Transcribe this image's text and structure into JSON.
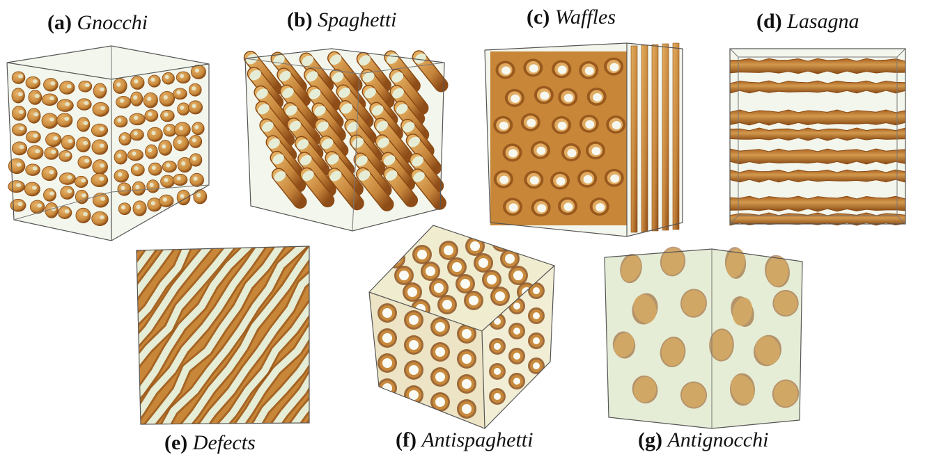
{
  "figure": {
    "panels": [
      {
        "tag": "(a)",
        "name": "Gnocchi"
      },
      {
        "tag": "(b)",
        "name": "Spaghetti"
      },
      {
        "tag": "(c)",
        "name": "Waffles"
      },
      {
        "tag": "(d)",
        "name": "Lasagna"
      },
      {
        "tag": "(e)",
        "name": "Defects"
      },
      {
        "tag": "(f)",
        "name": "Antispaghetti"
      },
      {
        "tag": "(g)",
        "name": "Antignocchi"
      }
    ],
    "colors": {
      "pasta": "#c98a3c",
      "pasta_dark": "#8a4a14",
      "pasta_light": "#e1ac62",
      "matrix": "#e6edd6",
      "edge": "#555555"
    }
  }
}
